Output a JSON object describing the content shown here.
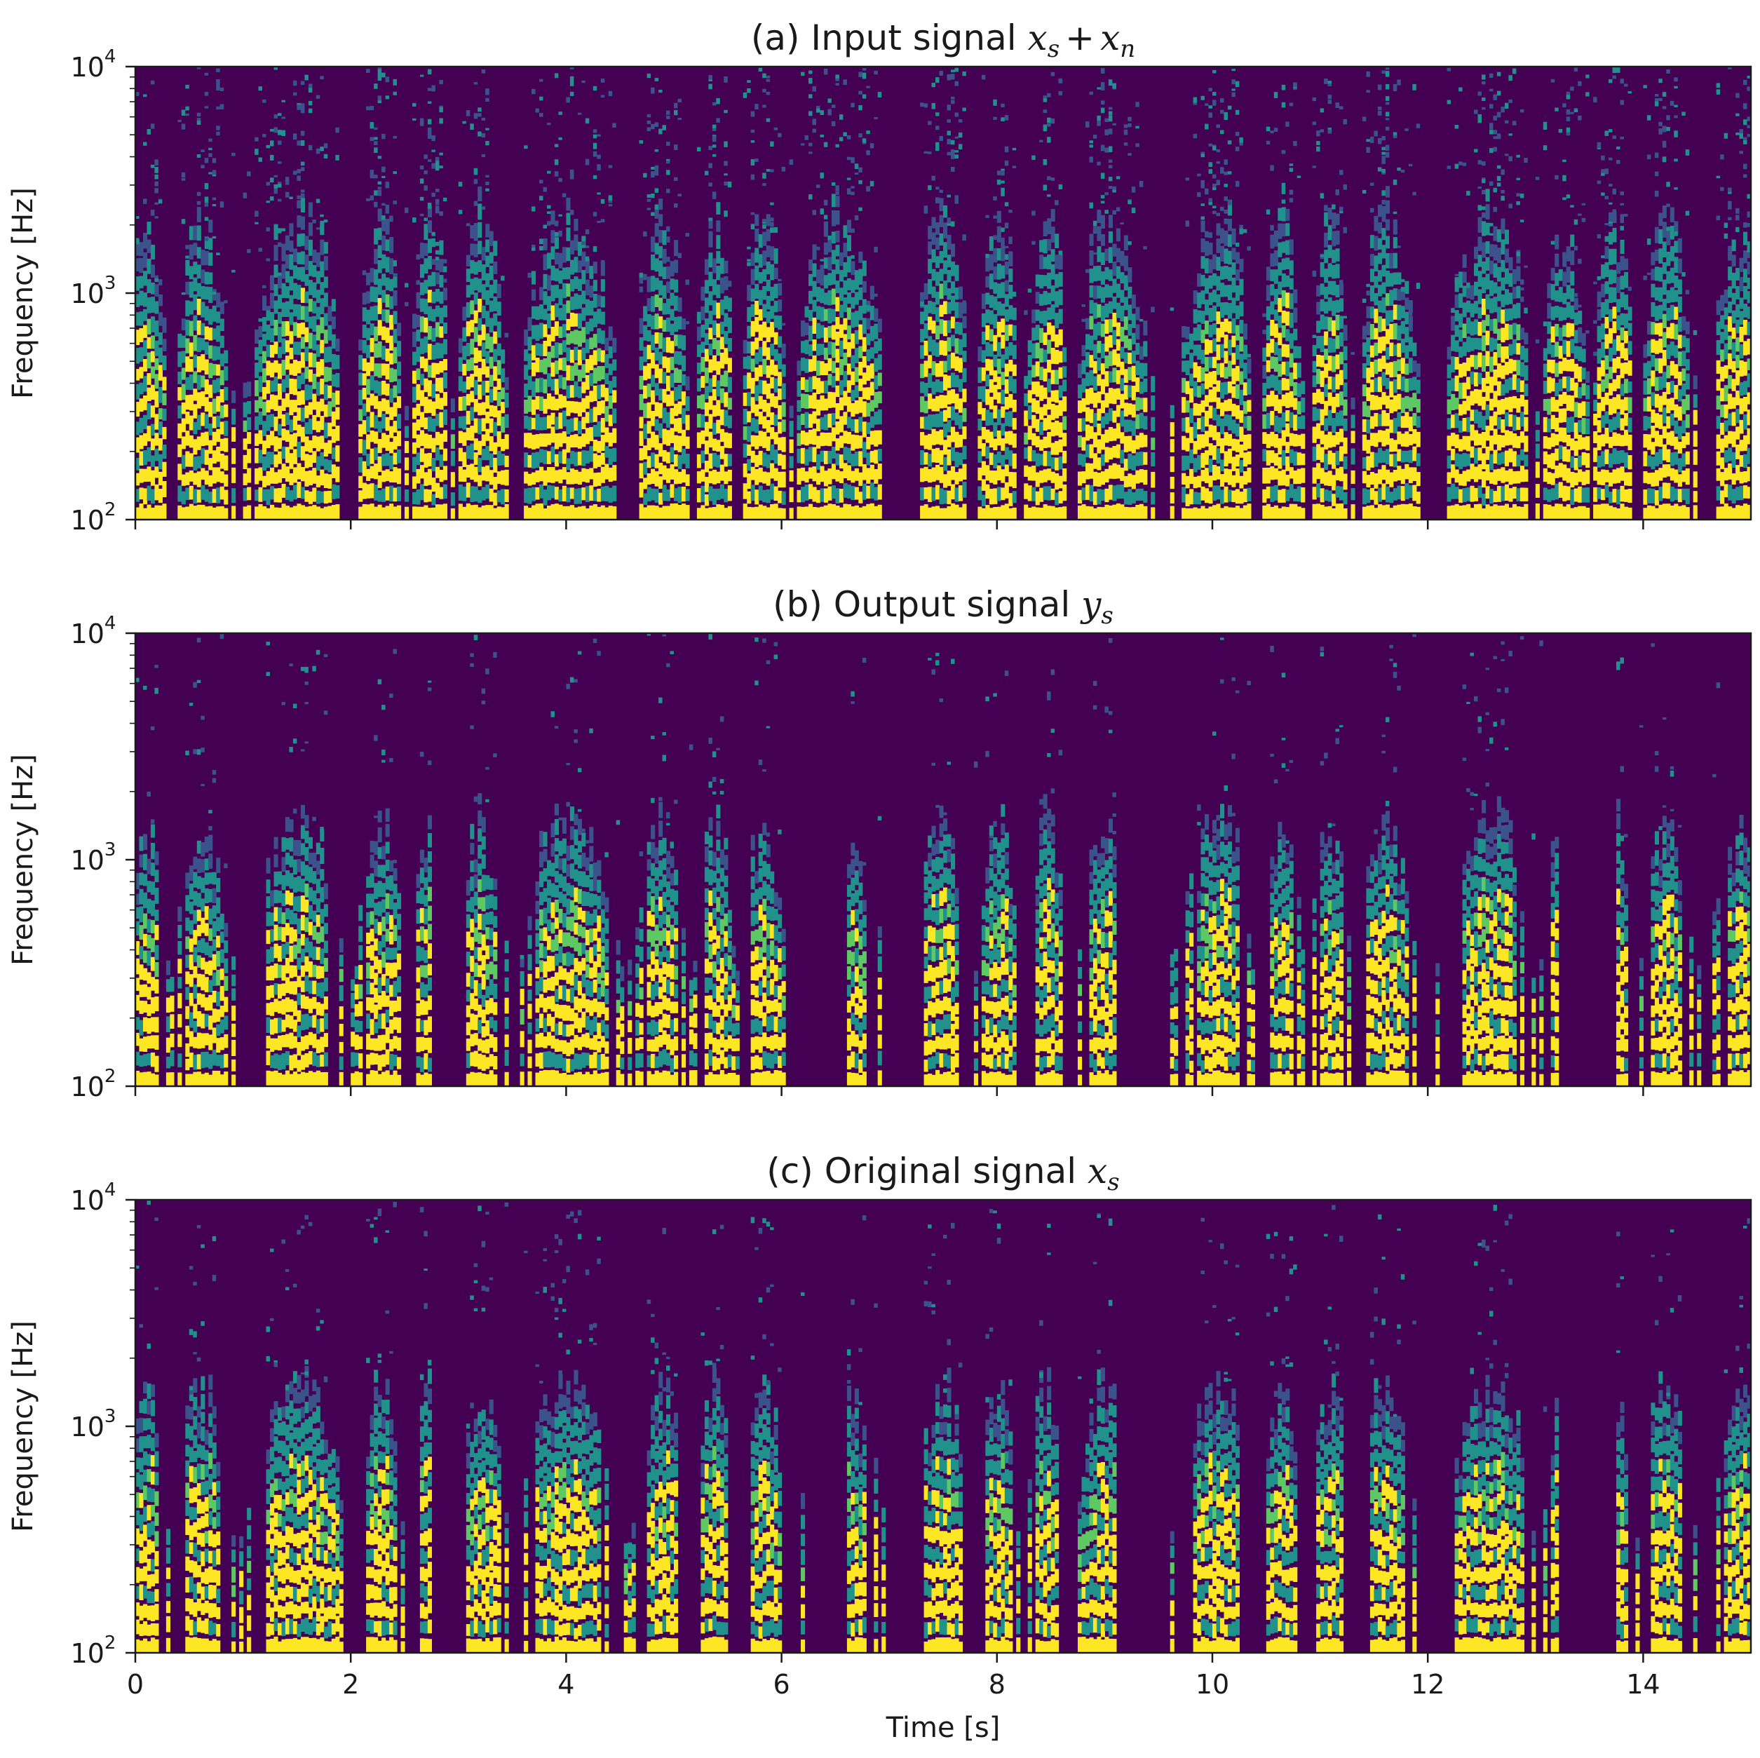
{
  "chart_data": [
    {
      "type": "heatmap",
      "panel": "a",
      "title_prefix": "(a) Input signal ",
      "title_math": {
        "a": "x",
        "a_sub": "s",
        "op": "+",
        "b": "x",
        "b_sub": "n"
      },
      "ylabel": "Frequency [Hz]",
      "xlabel": "",
      "xlim": [
        0,
        15
      ],
      "ylim": [
        100,
        10000
      ],
      "yscale": "log",
      "yticks": [
        {
          "base": "10",
          "exp": "2"
        },
        {
          "base": "10",
          "exp": "3"
        },
        {
          "base": "10",
          "exp": "4"
        }
      ],
      "xticks": [],
      "colormap": "viridis",
      "density": 0.82,
      "gap_intervals": [
        [
          6.95,
          7.3
        ]
      ]
    },
    {
      "type": "heatmap",
      "panel": "b",
      "title_prefix": "(b) Output signal ",
      "title_math": {
        "a": "y",
        "a_sub": "s"
      },
      "ylabel": "Frequency [Hz]",
      "xlabel": "",
      "xlim": [
        0,
        15
      ],
      "ylim": [
        100,
        10000
      ],
      "yscale": "log",
      "yticks": [
        {
          "base": "10",
          "exp": "2"
        },
        {
          "base": "10",
          "exp": "3"
        },
        {
          "base": "10",
          "exp": "4"
        }
      ],
      "xticks": [],
      "colormap": "viridis",
      "density": 0.45,
      "gap_intervals": [
        [
          2.75,
          3.05
        ],
        [
          6.25,
          6.6
        ],
        [
          6.95,
          7.3
        ],
        [
          9.1,
          9.6
        ],
        [
          13.2,
          13.75
        ]
      ]
    },
    {
      "type": "heatmap",
      "panel": "c",
      "title_prefix": "(c) Original signal ",
      "title_math": {
        "a": "x",
        "a_sub": "s"
      },
      "ylabel": "Frequency [Hz]",
      "xlabel": "Time [s]",
      "xlim": [
        0,
        15
      ],
      "ylim": [
        100,
        10000
      ],
      "yscale": "log",
      "yticks": [
        {
          "base": "10",
          "exp": "2"
        },
        {
          "base": "10",
          "exp": "3"
        },
        {
          "base": "10",
          "exp": "4"
        }
      ],
      "xticks": [
        "0",
        "2",
        "4",
        "6",
        "8",
        "10",
        "12",
        "14"
      ],
      "colormap": "viridis",
      "density": 0.5,
      "gap_intervals": [
        [
          2.75,
          3.05
        ],
        [
          6.25,
          6.6
        ],
        [
          6.95,
          7.3
        ],
        [
          9.1,
          9.6
        ],
        [
          13.2,
          13.75
        ]
      ]
    }
  ],
  "colors": {
    "background": "#440154",
    "low": "#3b528b",
    "mid": "#21918c",
    "high": "#5ec962",
    "peak": "#fde725"
  }
}
